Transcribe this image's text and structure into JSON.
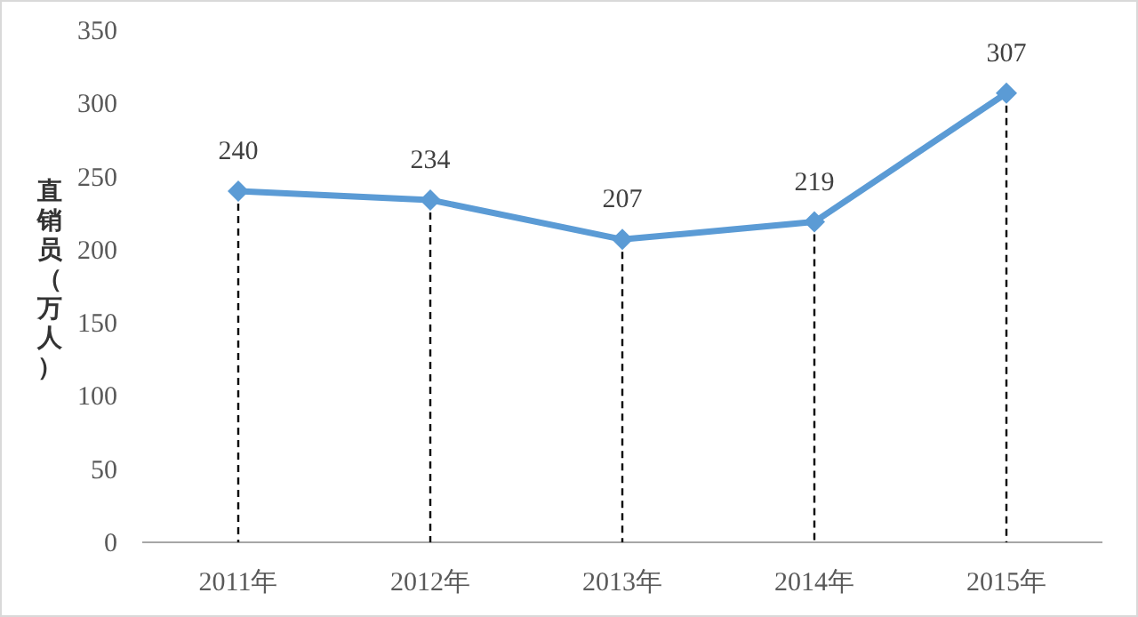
{
  "chart_data": {
    "type": "line",
    "ylabel": "直销员（万人）",
    "categories": [
      "2011年",
      "2012年",
      "2013年",
      "2014年",
      "2015年"
    ],
    "series": [
      {
        "color": "#5b9bd5",
        "values": [
          240,
          234,
          207,
          219,
          307
        ]
      }
    ],
    "ylim": [
      0,
      350
    ],
    "yticks": [
      0,
      50,
      100,
      150,
      200,
      250,
      300,
      350
    ],
    "marker": "diamond",
    "line_style": "solid",
    "data_labels": true
  }
}
